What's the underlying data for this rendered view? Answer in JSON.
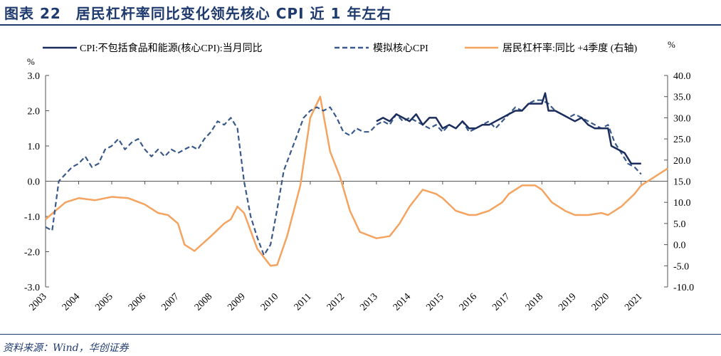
{
  "figure_title": "图表 22　居民杠杆率同比变化领先核心 CPI 近 1 年左右",
  "source": "资料来源：Wind，华创证券",
  "colors": {
    "core": "#1b2d5c",
    "model": "#3a5a8c",
    "leverage": "#f4a460",
    "axis": "#555555",
    "brand": "#1f3a6e"
  },
  "chart_data": {
    "type": "line",
    "title": "居民杠杆率同比变化领先核心 CPI 近 1 年左右",
    "left_axis": {
      "unit": "%",
      "ylim": [
        -3.0,
        3.0
      ],
      "ticks": [
        "3.0",
        "2.0",
        "1.0",
        "0.0",
        "-1.0",
        "-2.0",
        "-3.0"
      ],
      "tick_values": [
        3,
        2,
        1,
        0,
        -1,
        -2,
        -3
      ]
    },
    "right_axis": {
      "unit": "%",
      "ylim": [
        -10.0,
        40.0
      ],
      "ticks": [
        "40.0",
        "35.0",
        "30.0",
        "25.0",
        "20.0",
        "15.0",
        "10.0",
        "5.0",
        "0.0",
        "-5.0",
        "-10.0"
      ],
      "tick_values": [
        40,
        35,
        30,
        25,
        20,
        15,
        10,
        5,
        0,
        -5,
        -10
      ]
    },
    "x_axis": {
      "range": [
        2003,
        2021.8
      ],
      "ticks": [
        "2003",
        "2004",
        "2005",
        "2006",
        "2007",
        "2008",
        "2009",
        "2010",
        "2011",
        "2012",
        "2013",
        "2014",
        "2015",
        "2016",
        "2017",
        "2018",
        "2019",
        "2020",
        "2021"
      ],
      "tick_values": [
        2003,
        2004,
        2005,
        2006,
        2007,
        2008,
        2009,
        2010,
        2011,
        2012,
        2013,
        2014,
        2015,
        2016,
        2017,
        2018,
        2019,
        2020,
        2021
      ]
    },
    "series": [
      {
        "name": "CPI:不包括食品和能源(核心CPI):当月同比",
        "axis": "left",
        "style": "solid",
        "x": [
          2013.0,
          2013.2,
          2013.4,
          2013.6,
          2013.8,
          2014.0,
          2014.2,
          2014.4,
          2014.6,
          2014.8,
          2015.0,
          2015.2,
          2015.4,
          2015.6,
          2015.8,
          2016.0,
          2016.2,
          2016.4,
          2016.6,
          2016.8,
          2017.0,
          2017.2,
          2017.4,
          2017.6,
          2017.8,
          2018.0,
          2018.1,
          2018.2,
          2018.4,
          2018.6,
          2018.8,
          2019.0,
          2019.2,
          2019.4,
          2019.6,
          2019.8,
          2020.0,
          2020.1,
          2020.3,
          2020.5,
          2020.7,
          2020.9,
          2021.0
        ],
        "values": [
          1.7,
          1.8,
          1.7,
          1.9,
          1.8,
          1.7,
          1.9,
          1.6,
          1.8,
          1.8,
          1.5,
          1.6,
          1.5,
          1.7,
          1.5,
          1.5,
          1.6,
          1.6,
          1.7,
          1.8,
          1.9,
          2.0,
          2.0,
          2.2,
          2.2,
          2.2,
          2.5,
          2.0,
          2.0,
          1.9,
          1.8,
          1.7,
          1.8,
          1.6,
          1.5,
          1.5,
          1.5,
          1.0,
          0.9,
          0.8,
          0.5,
          0.5,
          0.5
        ]
      },
      {
        "name": "模拟核心CPI",
        "axis": "left",
        "style": "dashed",
        "x": [
          2003.0,
          2003.2,
          2003.4,
          2003.6,
          2003.8,
          2004.0,
          2004.2,
          2004.4,
          2004.6,
          2004.8,
          2005.0,
          2005.2,
          2005.4,
          2005.6,
          2005.8,
          2006.0,
          2006.2,
          2006.4,
          2006.6,
          2006.8,
          2007.0,
          2007.2,
          2007.4,
          2007.6,
          2007.8,
          2008.0,
          2008.2,
          2008.4,
          2008.6,
          2008.8,
          2009.0,
          2009.2,
          2009.4,
          2009.6,
          2009.8,
          2010.0,
          2010.2,
          2010.4,
          2010.6,
          2010.8,
          2011.0,
          2011.2,
          2011.4,
          2011.6,
          2011.8,
          2012.0,
          2012.2,
          2012.4,
          2012.6,
          2012.8,
          2013.0,
          2013.2,
          2013.4,
          2013.6,
          2013.8,
          2014.0,
          2014.2,
          2014.4,
          2014.6,
          2014.8,
          2015.0,
          2015.2,
          2015.4,
          2015.6,
          2015.8,
          2016.0,
          2016.2,
          2016.4,
          2016.6,
          2016.8,
          2017.0,
          2017.2,
          2017.4,
          2017.6,
          2017.8,
          2018.0,
          2018.2,
          2018.4,
          2018.6,
          2018.8,
          2019.0,
          2019.2,
          2019.4,
          2019.6,
          2019.8,
          2020.0,
          2020.2,
          2020.4,
          2020.6,
          2020.8,
          2021.0
        ],
        "values": [
          -1.3,
          -1.4,
          0.0,
          0.2,
          0.4,
          0.5,
          0.7,
          0.4,
          0.5,
          0.9,
          1.0,
          1.2,
          0.9,
          1.1,
          1.2,
          0.9,
          0.7,
          0.9,
          0.7,
          0.9,
          0.8,
          0.9,
          1.0,
          0.9,
          1.2,
          1.4,
          1.7,
          1.6,
          1.8,
          1.5,
          0.0,
          -1.0,
          -1.6,
          -2.1,
          -1.8,
          -0.8,
          0.3,
          0.8,
          1.3,
          1.8,
          2.0,
          2.1,
          2.0,
          2.1,
          1.8,
          1.4,
          1.3,
          1.5,
          1.4,
          1.4,
          1.6,
          1.7,
          1.6,
          1.9,
          1.7,
          1.8,
          1.7,
          1.6,
          1.5,
          1.6,
          1.4,
          1.6,
          1.5,
          1.7,
          1.4,
          1.5,
          1.6,
          1.7,
          1.5,
          1.7,
          1.9,
          2.1,
          2.0,
          2.2,
          2.3,
          2.3,
          2.2,
          2.0,
          1.9,
          1.8,
          1.9,
          1.8,
          1.7,
          1.6,
          1.5,
          1.6,
          1.1,
          0.8,
          0.5,
          0.4,
          0.2
        ]
      },
      {
        "name": "居民杠杆率:同比 +4季度 (右轴)",
        "axis": "right",
        "style": "solid",
        "x": [
          2003.0,
          2003.3,
          2003.6,
          2004.0,
          2004.5,
          2005.0,
          2005.5,
          2006.0,
          2006.4,
          2006.7,
          2007.0,
          2007.2,
          2007.5,
          2008.0,
          2008.4,
          2008.6,
          2008.8,
          2009.0,
          2009.4,
          2009.8,
          2010.0,
          2010.3,
          2010.7,
          2011.0,
          2011.3,
          2011.6,
          2011.9,
          2012.2,
          2012.5,
          2013.0,
          2013.4,
          2013.7,
          2014.0,
          2014.4,
          2014.8,
          2015.0,
          2015.4,
          2015.8,
          2016.0,
          2016.4,
          2016.8,
          2017.0,
          2017.4,
          2017.8,
          2018.0,
          2018.3,
          2018.7,
          2019.0,
          2019.4,
          2019.8,
          2020.0,
          2020.4,
          2020.8,
          2021.0,
          2021.4,
          2021.8
        ],
        "values": [
          6.0,
          8.0,
          10.0,
          11.0,
          10.5,
          11.3,
          11.0,
          9.5,
          7.5,
          7.0,
          5.0,
          0.0,
          -1.5,
          2.0,
          5.0,
          6.0,
          9.0,
          7.5,
          -1.0,
          -5.0,
          -4.8,
          2.0,
          14.0,
          30.0,
          35.0,
          22.0,
          16.0,
          8.0,
          3.0,
          1.5,
          2.0,
          5.0,
          9.0,
          13.0,
          12.0,
          11.0,
          8.0,
          7.0,
          7.0,
          8.0,
          10.0,
          12.0,
          14.0,
          14.0,
          13.0,
          10.0,
          8.0,
          7.0,
          7.0,
          7.5,
          7.0,
          9.0,
          12.0,
          14.0,
          16.0,
          18.0
        ]
      }
    ],
    "legend": [
      "CPI:不包括食品和能源(核心CPI):当月同比",
      "模拟核心CPI",
      "居民杠杆率:同比 +4季度 (右轴)"
    ],
    "legend_position": "top",
    "grid": false
  }
}
